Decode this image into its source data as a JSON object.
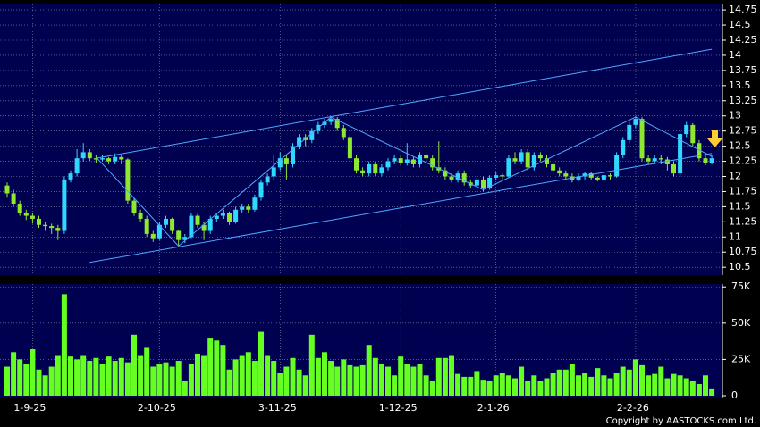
{
  "chart_data": {
    "type": "candlestick",
    "up_color": "#2fd8ff",
    "down_color": "#8ee830",
    "volume_color": "#66ff22",
    "line_color": "#4fa8ff",
    "grid": true,
    "copyright": "Copyright by AASTOCKS.com Ltd.",
    "categories": [
      null,
      null,
      null,
      null,
      "1-9-25",
      null,
      null,
      null,
      null,
      null,
      null,
      null,
      null,
      null,
      null,
      null,
      null,
      null,
      null,
      null,
      null,
      null,
      null,
      null,
      "2-10-25",
      null,
      null,
      null,
      null,
      null,
      null,
      null,
      null,
      null,
      null,
      null,
      null,
      null,
      null,
      null,
      null,
      null,
      null,
      "3-11-25",
      null,
      null,
      null,
      null,
      null,
      null,
      null,
      null,
      null,
      null,
      null,
      null,
      null,
      null,
      null,
      null,
      null,
      null,
      "1-12-25",
      null,
      null,
      null,
      null,
      null,
      null,
      null,
      null,
      null,
      null,
      null,
      null,
      null,
      null,
      "2-1-26",
      null,
      null,
      null,
      null,
      null,
      null,
      null,
      null,
      null,
      null,
      null,
      null,
      null,
      null,
      null,
      null,
      null,
      null,
      null,
      null,
      null,
      "2-2-26",
      null,
      null,
      null,
      null,
      null,
      null,
      null,
      null,
      null,
      null,
      null,
      null
    ],
    "open": [
      11.85,
      11.72,
      11.55,
      11.4,
      11.35,
      11.3,
      11.2,
      11.18,
      11.15,
      11.1,
      11.95,
      12.05,
      12.3,
      12.4,
      12.3,
      12.28,
      12.3,
      12.25,
      12.32,
      12.28,
      11.6,
      11.4,
      11.3,
      11.05,
      10.98,
      11.2,
      11.3,
      11.1,
      10.95,
      11.0,
      11.35,
      11.2,
      11.1,
      11.3,
      11.35,
      11.4,
      11.25,
      11.45,
      11.5,
      11.45,
      11.65,
      11.9,
      12.0,
      12.15,
      12.3,
      12.2,
      12.5,
      12.65,
      12.6,
      12.75,
      12.85,
      12.9,
      12.95,
      12.8,
      12.65,
      12.3,
      12.1,
      12.05,
      12.2,
      12.05,
      12.15,
      12.25,
      12.3,
      12.22,
      12.28,
      12.2,
      12.35,
      12.3,
      12.15,
      12.1,
      12.0,
      11.95,
      12.05,
      11.9,
      11.85,
      11.95,
      11.8,
      11.98,
      12.02,
      12.0,
      12.3,
      12.25,
      12.4,
      12.15,
      12.35,
      12.3,
      12.2,
      12.1,
      12.05,
      12.0,
      11.95,
      12.0,
      12.05,
      11.98,
      11.95,
      12.02,
      12.0,
      12.35,
      12.6,
      12.85,
      12.95,
      12.3,
      12.25,
      12.3,
      12.28,
      12.2,
      12.05,
      12.7,
      12.85,
      12.55,
      12.3,
      12.22
    ],
    "high": [
      11.9,
      11.78,
      11.6,
      11.45,
      11.4,
      11.35,
      11.25,
      11.22,
      11.2,
      12.0,
      12.1,
      12.45,
      12.55,
      12.45,
      12.35,
      12.35,
      12.32,
      12.38,
      12.35,
      12.3,
      11.65,
      11.45,
      11.35,
      11.1,
      11.25,
      11.35,
      11.32,
      11.12,
      11.05,
      11.4,
      11.38,
      11.25,
      11.35,
      11.4,
      11.45,
      11.42,
      11.5,
      11.55,
      11.55,
      11.7,
      11.95,
      12.05,
      12.35,
      12.4,
      12.35,
      12.55,
      12.7,
      12.7,
      12.8,
      12.9,
      12.95,
      13.0,
      12.98,
      12.85,
      12.7,
      12.35,
      12.15,
      12.25,
      12.25,
      12.2,
      12.3,
      12.35,
      12.35,
      12.55,
      12.32,
      12.4,
      12.4,
      12.35,
      12.58,
      12.15,
      12.05,
      12.1,
      12.1,
      11.95,
      12.0,
      12.0,
      12.02,
      12.08,
      12.05,
      12.35,
      12.4,
      12.45,
      12.45,
      12.4,
      12.4,
      12.35,
      12.25,
      12.15,
      12.1,
      12.05,
      12.05,
      12.08,
      12.08,
      12.0,
      12.05,
      12.05,
      12.4,
      12.65,
      12.9,
      13.0,
      12.98,
      12.35,
      12.35,
      12.35,
      12.32,
      12.25,
      12.75,
      12.9,
      12.88,
      12.6,
      12.35,
      12.35
    ],
    "low": [
      11.65,
      11.5,
      11.35,
      11.28,
      11.22,
      11.15,
      11.1,
      11.05,
      10.95,
      11.05,
      11.9,
      12.0,
      12.25,
      12.25,
      12.22,
      12.25,
      12.2,
      12.2,
      12.2,
      11.55,
      11.35,
      11.25,
      11.0,
      10.92,
      10.95,
      11.15,
      11.05,
      10.85,
      10.9,
      10.98,
      11.15,
      10.95,
      11.05,
      11.25,
      11.3,
      11.2,
      11.22,
      11.4,
      11.4,
      11.42,
      11.6,
      11.85,
      11.95,
      12.1,
      11.95,
      12.15,
      12.45,
      12.5,
      12.55,
      12.7,
      12.8,
      12.85,
      12.75,
      12.6,
      12.25,
      12.05,
      12.0,
      12.0,
      12.0,
      12.0,
      12.1,
      12.2,
      12.18,
      12.18,
      12.15,
      12.15,
      12.25,
      12.1,
      12.05,
      11.95,
      11.9,
      11.9,
      11.85,
      11.8,
      11.8,
      11.75,
      11.78,
      11.95,
      11.95,
      11.98,
      12.2,
      12.2,
      12.1,
      12.1,
      12.25,
      12.15,
      12.05,
      12.0,
      11.95,
      11.9,
      11.92,
      11.95,
      11.95,
      11.92,
      11.92,
      11.95,
      11.98,
      12.3,
      12.55,
      12.8,
      12.25,
      12.2,
      12.2,
      12.2,
      12.1,
      12.0,
      12.0,
      12.65,
      12.5,
      12.25,
      12.18,
      12.2
    ],
    "close": [
      11.72,
      11.55,
      11.4,
      11.35,
      11.3,
      11.2,
      11.18,
      11.15,
      11.1,
      11.95,
      12.05,
      12.3,
      12.4,
      12.3,
      12.28,
      12.3,
      12.25,
      12.32,
      12.28,
      11.6,
      11.4,
      11.3,
      11.05,
      10.98,
      11.2,
      11.3,
      11.1,
      10.95,
      11.0,
      11.35,
      11.2,
      11.1,
      11.3,
      11.35,
      11.4,
      11.25,
      11.45,
      11.5,
      11.45,
      11.65,
      11.9,
      12.0,
      12.15,
      12.3,
      12.2,
      12.5,
      12.65,
      12.6,
      12.75,
      12.85,
      12.9,
      12.95,
      12.8,
      12.65,
      12.3,
      12.1,
      12.05,
      12.2,
      12.05,
      12.15,
      12.25,
      12.3,
      12.22,
      12.28,
      12.2,
      12.35,
      12.3,
      12.15,
      12.1,
      12.0,
      11.95,
      12.05,
      11.9,
      11.85,
      11.95,
      11.8,
      11.98,
      12.02,
      12.0,
      12.3,
      12.25,
      12.4,
      12.15,
      12.35,
      12.3,
      12.2,
      12.1,
      12.05,
      12.0,
      11.95,
      12.0,
      12.05,
      11.98,
      11.95,
      12.02,
      12.0,
      12.35,
      12.6,
      12.85,
      12.95,
      12.3,
      12.25,
      12.3,
      12.28,
      12.2,
      12.05,
      12.7,
      12.85,
      12.55,
      12.3,
      12.22,
      12.3
    ],
    "volume": [
      20000,
      30000,
      25000,
      22000,
      32000,
      18000,
      14000,
      20000,
      28000,
      70000,
      27000,
      25000,
      28000,
      24000,
      26000,
      22000,
      27000,
      24000,
      26000,
      23000,
      42000,
      28000,
      33000,
      20000,
      22000,
      23000,
      20000,
      24000,
      10000,
      22000,
      29000,
      28000,
      40000,
      38000,
      35000,
      18000,
      25000,
      28000,
      30000,
      24000,
      44000,
      28000,
      24000,
      16000,
      20000,
      26000,
      18000,
      14000,
      42000,
      26000,
      30000,
      24000,
      20000,
      25000,
      21000,
      20000,
      21000,
      35000,
      26000,
      22000,
      20000,
      14000,
      27000,
      22000,
      20000,
      22000,
      14000,
      10000,
      26000,
      26000,
      28000,
      15000,
      13000,
      13000,
      17000,
      11000,
      10000,
      14000,
      16000,
      14000,
      12000,
      20000,
      10000,
      14000,
      10000,
      12000,
      16000,
      18000,
      18000,
      22000,
      14000,
      16000,
      13000,
      19000,
      14000,
      12000,
      16000,
      20000,
      18000,
      25000,
      21000,
      14000,
      15000,
      20000,
      12000,
      15000,
      14000,
      12000,
      10000,
      8000,
      14000,
      5000
    ],
    "lines": [
      {
        "x": [
          14,
          111
        ],
        "y": [
          12.3,
          14.1
        ]
      },
      {
        "x": [
          13,
          111
        ],
        "y": [
          10.58,
          12.38
        ]
      },
      {
        "x": [
          14,
          27,
          51,
          75,
          99,
          111
        ],
        "y": [
          12.32,
          10.85,
          12.98,
          11.78,
          12.98,
          12.33
        ]
      }
    ],
    "ylim": [
      10.37,
      14.84
    ],
    "yticks": [
      14.75,
      14.5,
      14.25,
      14,
      13.75,
      13.5,
      13.25,
      13,
      12.75,
      12.5,
      12.25,
      12,
      11.75,
      11.5,
      11.25,
      11,
      10.75,
      10.5
    ],
    "volume_ylim": [
      0,
      77000
    ],
    "volume_yticks": [
      {
        "value": 75000,
        "label": "75K"
      },
      {
        "value": 50000,
        "label": "50K"
      },
      {
        "value": 25000,
        "label": "25K"
      },
      0
    ]
  }
}
